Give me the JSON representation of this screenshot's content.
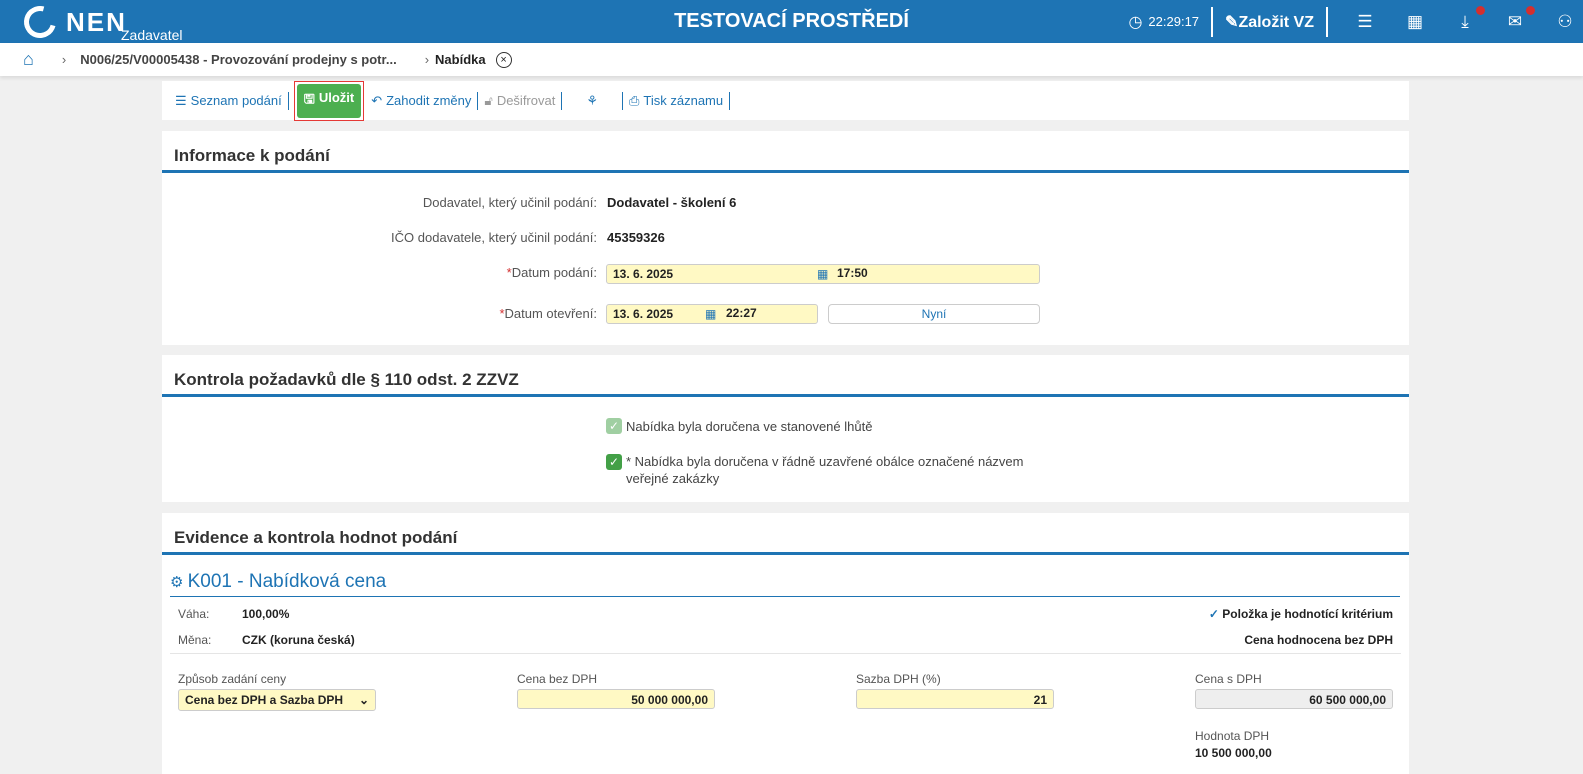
{
  "header": {
    "brand": "NEN",
    "role": "Zadavatel",
    "environment": "TESTOVACÍ PROSTŘEDÍ",
    "time": "22:29:17",
    "create_label": "Založit VZ"
  },
  "breadcrumb": {
    "item1": "N006/25/V00005438 - Provozování prodejny s potr...",
    "current": "Nabídka"
  },
  "toolbar": {
    "list": "Seznam podání",
    "save": "Uložit",
    "discard": "Zahodit změny",
    "decrypt": "Dešifrovat",
    "print": "Tisk záznamu"
  },
  "info": {
    "title": "Informace k podání",
    "supplier_label": "Dodavatel, který učinil podání:",
    "supplier": "Dodavatel - školení 6",
    "ico_label": "IČO dodavatele, který učinil podání:",
    "ico": "45359326",
    "date_sub_label": "Datum podání:",
    "date_sub": "13. 6. 2025",
    "time_sub": "17:50",
    "date_open_label": "Datum otevření:",
    "date_open": "13. 6. 2025",
    "time_open": "22:27",
    "now": "Nyní",
    "req": "*"
  },
  "control": {
    "title": "Kontrola požadavků dle § 110 odst. 2 ZZVZ",
    "check1": "Nabídka byla doručena ve stanovené lhůtě",
    "check2": "* Nabídka byla doručena v řádně uzavřené obálce označené názvem veřejné zakázky",
    "check1_checked": true,
    "check2_checked": true
  },
  "evidence": {
    "title": "Evidence a kontrola hodnot podání",
    "criterion": "K001 - Nabídková cena",
    "weight_label": "Váha:",
    "weight": "100,00%",
    "currency_label": "Měna:",
    "currency": "CZK (koruna česká)",
    "is_criterion": "Položka je hodnotící kritérium",
    "eval_note": "Cena hodnocena bez DPH",
    "method_label": "Způsob zadání ceny",
    "method": "Cena bez DPH a Sazba DPH",
    "price_label": "Cena bez DPH",
    "price": "50 000 000,00",
    "vat_rate_label": "Sazba DPH (%)",
    "vat_rate": "21",
    "price_vat_label": "Cena s DPH",
    "price_vat": "60 500 000,00",
    "vat_label": "Hodnota DPH",
    "vat": "10 500 000,00"
  }
}
